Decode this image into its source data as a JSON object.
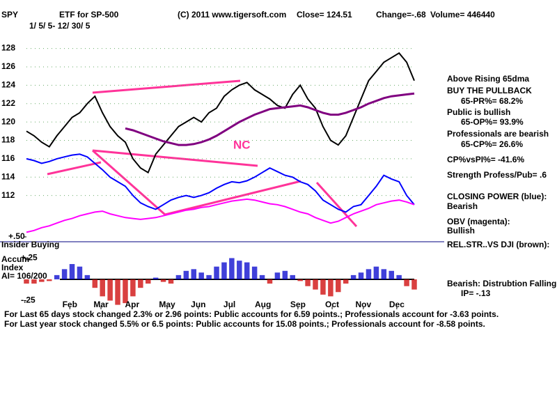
{
  "header": {
    "symbol": "SPY",
    "name": "ETF for SP-500",
    "copyright": "(C) 2011 www.tigersoft.com",
    "close": "Close=  124.51",
    "change": "Change=-.68",
    "volume": "Volume= 446440",
    "dates": "1/ 5/ 5- 12/ 30/ 5"
  },
  "notes": [
    "Above Rising 65dma",
    "BUY THE PULLBACK",
    "65-PR%= 68.2%",
    "Public is bullish",
    "65-OP%= 93.9%",
    "Professionals are bearish",
    "65-CP%= 26.6%",
    "CP%vsPI%= -41.6%",
    "Strength Profess/Pub= .6",
    "CLOSING POWER (blue):",
    "Bearish",
    "OBV (magenta):",
    "Bullish",
    "REL.STR..VS DJI (brown):",
    "Bearish: Distrubtion Falling.",
    "IP= -.13"
  ],
  "panel_labels": [
    "Insider Buying",
    "Accum",
    "Index",
    "AI= 106/200"
  ],
  "footer": [
    "For Last 65 days stock changed  2.3% or  2.96 points:  Public accounts for  6.59 points.;  Professionals account for -3.63 points.",
    "For Last year stock changed  5.5% or  6.5 points:  Public accounts for  15.08 points.;  Professionals account for -8.58 points."
  ],
  "chart_data": [
    {
      "type": "line",
      "annotation": "NC",
      "xlim": [
        1,
        52
      ],
      "ylim": [
        107.5,
        131
      ],
      "yticks": [
        112,
        114,
        116,
        118,
        120,
        122,
        124,
        126,
        128
      ],
      "grid": true,
      "x": [
        1,
        2,
        3,
        4,
        5,
        6,
        7,
        8,
        9,
        10,
        11,
        12,
        13,
        14,
        15,
        16,
        17,
        18,
        19,
        20,
        21,
        22,
        23,
        24,
        25,
        26,
        27,
        28,
        29,
        30,
        31,
        32,
        33,
        34,
        35,
        36,
        37,
        38,
        39,
        40,
        41,
        42,
        43,
        44,
        45,
        46,
        47,
        48,
        49,
        50,
        51,
        52
      ],
      "series": [
        {
          "name": "SPY",
          "color": "#000000",
          "values": [
            119,
            118.5,
            117.8,
            117.3,
            118.5,
            119.5,
            120.5,
            121,
            122,
            122.8,
            121,
            119.5,
            118.5,
            117.8,
            116,
            115,
            114.5,
            116.5,
            117.5,
            118.5,
            119.5,
            120,
            120.5,
            120,
            121,
            121.5,
            122.8,
            123.5,
            124,
            124.3,
            123.5,
            123,
            122.5,
            121.8,
            121.5,
            123,
            124,
            122.5,
            121.5,
            119.5,
            118,
            117.5,
            118.5,
            120.5,
            122.5,
            124.5,
            125.5,
            126.5,
            127,
            127.5,
            126.5,
            124.5
          ]
        },
        {
          "name": "65dma",
          "color": "#800080",
          "values": [
            null,
            null,
            null,
            null,
            null,
            null,
            null,
            null,
            null,
            null,
            null,
            null,
            null,
            119.3,
            119.1,
            118.8,
            118.5,
            118.2,
            117.9,
            117.7,
            117.5,
            117.5,
            117.6,
            117.8,
            118.1,
            118.5,
            119,
            119.5,
            120,
            120.4,
            120.8,
            121.1,
            121.4,
            121.5,
            121.6,
            121.7,
            121.8,
            121.6,
            121.3,
            121,
            120.8,
            120.8,
            121,
            121.3,
            121.6,
            122,
            122.3,
            122.6,
            122.8,
            122.9,
            123,
            123.1
          ]
        },
        {
          "name": "CLOSING POWER",
          "color": "#0000ff",
          "values": [
            116,
            115.8,
            115.5,
            115.7,
            116,
            116.2,
            116.4,
            116.5,
            116.2,
            115.5,
            114.8,
            114,
            113.5,
            113,
            112,
            111.2,
            110.8,
            110.5,
            111,
            111.5,
            111.8,
            112,
            111.8,
            112,
            112.3,
            112.8,
            113.2,
            113.5,
            113.4,
            113.6,
            114,
            114.5,
            115,
            114.6,
            114.2,
            114,
            113.5,
            113.2,
            112.5,
            111.5,
            111,
            110.5,
            110.2,
            110.8,
            111,
            112,
            113,
            114.2,
            113.8,
            113.5,
            112,
            111
          ]
        },
        {
          "name": "OBV",
          "color": "#ff00ff",
          "values": [
            108,
            108.2,
            108.5,
            108.7,
            109,
            109.3,
            109.5,
            109.8,
            110,
            110.2,
            110.3,
            110,
            109.8,
            109.6,
            109.5,
            109.4,
            109.5,
            109.6,
            109.8,
            110,
            110.2,
            110.4,
            110.5,
            110.7,
            110.8,
            111,
            111.2,
            111.4,
            111.5,
            111.6,
            111.5,
            111.3,
            111.1,
            111,
            110.8,
            110.5,
            110.2,
            110,
            109.6,
            109.3,
            109,
            109.2,
            109.6,
            110,
            110.3,
            110.6,
            111,
            111.2,
            111.4,
            111.5,
            111.3,
            111
          ]
        }
      ]
    },
    {
      "type": "bar",
      "xlim": [
        1,
        52
      ],
      "ylim": [
        -0.32,
        0.5
      ],
      "pos_color": "#0000cc",
      "neg_color": "#cc0000",
      "yticks": [
        {
          "value": 0.5,
          "label": "+.50"
        },
        {
          "value": 0.25,
          "label": "+.25"
        },
        {
          "value": -0.25,
          "label": "-.25"
        }
      ],
      "xticks": [
        {
          "value": 6.7,
          "label": "Feb"
        },
        {
          "value": 10.8,
          "label": "Mar"
        },
        {
          "value": 14.9,
          "label": "Apr"
        },
        {
          "value": 19.5,
          "label": "May"
        },
        {
          "value": 23.6,
          "label": "Jun"
        },
        {
          "value": 27.7,
          "label": "Jul"
        },
        {
          "value": 32.1,
          "label": "Aug"
        },
        {
          "value": 36.7,
          "label": "Sep"
        },
        {
          "value": 41.2,
          "label": "Oct"
        },
        {
          "value": 45.3,
          "label": "Nov"
        },
        {
          "value": 49.7,
          "label": "Dec"
        }
      ],
      "x": [
        1,
        2,
        3,
        4,
        5,
        6,
        7,
        8,
        9,
        10,
        11,
        12,
        13,
        14,
        15,
        16,
        17,
        18,
        19,
        20,
        21,
        22,
        23,
        24,
        25,
        26,
        27,
        28,
        29,
        30,
        31,
        32,
        33,
        34,
        35,
        36,
        37,
        38,
        39,
        40,
        41,
        42,
        43,
        44,
        45,
        46,
        47,
        48,
        49,
        50,
        51,
        52
      ],
      "values": [
        -0.05,
        -0.05,
        -0.03,
        -0.02,
        0.05,
        0.12,
        0.18,
        0.15,
        0.05,
        -0.1,
        -0.2,
        -0.25,
        -0.3,
        -0.28,
        -0.2,
        -0.1,
        -0.05,
        0.02,
        -0.03,
        -0.05,
        0.05,
        0.1,
        0.12,
        0.08,
        0.05,
        0.15,
        0.2,
        0.25,
        0.22,
        0.2,
        0.15,
        0.05,
        -0.05,
        0.08,
        0.1,
        0.05,
        -0.02,
        -0.08,
        -0.12,
        -0.18,
        -0.2,
        -0.15,
        -0.05,
        0.05,
        0.08,
        0.12,
        0.15,
        0.12,
        0.1,
        0.05,
        -0.08,
        -0.12
      ]
    }
  ]
}
